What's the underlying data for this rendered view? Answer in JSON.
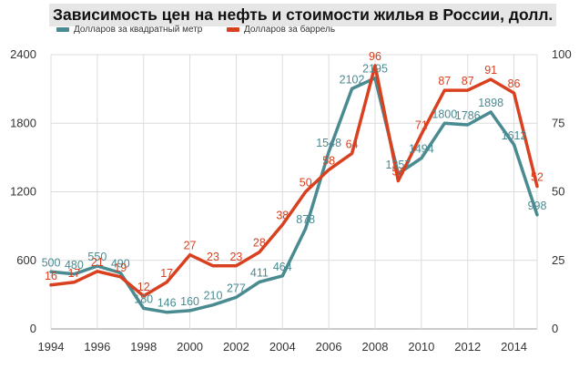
{
  "chart_data": {
    "type": "line",
    "title": "Зависимость цен на нефть и стоимости жилья в России, долл.",
    "legend_position": "top-left",
    "grid": true,
    "x": [
      1994,
      1995,
      1996,
      1997,
      1998,
      1999,
      2000,
      2001,
      2002,
      2003,
      2004,
      2005,
      2006,
      2007,
      2008,
      2009,
      2010,
      2011,
      2012,
      2013,
      2014,
      2015
    ],
    "x_ticks": [
      1994,
      1996,
      1998,
      2000,
      2002,
      2004,
      2006,
      2008,
      2010,
      2012,
      2014
    ],
    "x_tick_labels": [
      "1994",
      "1996",
      "1998",
      "2000",
      "2002",
      "2004",
      "2006",
      "2008",
      "2010",
      "2012",
      "2014"
    ],
    "y_left_ticks": [
      0,
      600,
      1200,
      1800,
      2400
    ],
    "y_left_tick_labels": [
      "0",
      "600",
      "1200",
      "1800",
      "2400"
    ],
    "y_left_lim": [
      0,
      2400
    ],
    "y_right_ticks": [
      0,
      25,
      50,
      75,
      100
    ],
    "y_right_tick_labels": [
      "0",
      "25",
      "50",
      "75",
      "100"
    ],
    "y_right_lim": [
      0,
      100
    ],
    "series": [
      {
        "name": "Долларов за квадратный метр",
        "axis": "left",
        "color": "#4a8a91",
        "values": [
          500,
          480,
          550,
          490,
          180,
          146,
          160,
          210,
          277,
          411,
          464,
          878,
          1548,
          2102,
          2195,
          1357,
          1494,
          1800,
          1786,
          1898,
          1612,
          998
        ],
        "labels": [
          "500",
          "480",
          "550",
          "490",
          "180",
          "146",
          "160",
          "210",
          "277",
          "411",
          "464",
          "878",
          "1548",
          "2102",
          "2195",
          "1357",
          "1494",
          "1800",
          "1786",
          "1898",
          "1612",
          "998"
        ]
      },
      {
        "name": "Долларов за баррель",
        "axis": "right",
        "color": "#d9401f",
        "values": [
          16,
          17,
          21,
          19,
          12,
          17,
          27,
          23,
          23,
          28,
          38,
          50,
          58,
          64,
          96,
          54,
          71,
          87,
          87,
          91,
          86,
          52
        ],
        "labels": [
          "16",
          "17",
          "21",
          "19",
          "12",
          "17",
          "27",
          "23",
          "23",
          "28",
          "38",
          "50",
          "58",
          "64",
          "96",
          "54",
          "71",
          "87",
          "87",
          "91",
          "86",
          "52"
        ]
      }
    ]
  }
}
